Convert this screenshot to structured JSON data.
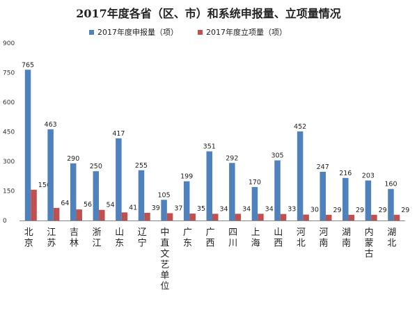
{
  "chart_data": {
    "type": "bar",
    "title": "2017年度各省（区、市）和系统申报量、立项量情况",
    "categories": [
      "北京",
      "江苏",
      "吉林",
      "浙江",
      "山东",
      "辽宁",
      "中直文艺单位",
      "广东",
      "广西",
      "四川",
      "上海",
      "山西",
      "河北",
      "河南",
      "湖南",
      "内蒙古",
      "湖北"
    ],
    "series": [
      {
        "name": "2017年度申报量（项）",
        "color": "#4F81BD",
        "values": [
          765,
          463,
          290,
          250,
          417,
          255,
          105,
          199,
          351,
          292,
          170,
          305,
          452,
          247,
          216,
          203,
          160
        ]
      },
      {
        "name": "2017年度立项量（项）",
        "color": "#C0504D",
        "values": [
          156,
          64,
          56,
          54,
          41,
          39,
          37,
          35,
          34,
          34,
          34,
          33,
          30,
          29,
          29,
          29,
          29
        ]
      }
    ],
    "ylim": [
      0,
      900
    ],
    "yticks": [
      0,
      150,
      300,
      450,
      600,
      750,
      900
    ],
    "grid": false,
    "legend_position": "top"
  }
}
